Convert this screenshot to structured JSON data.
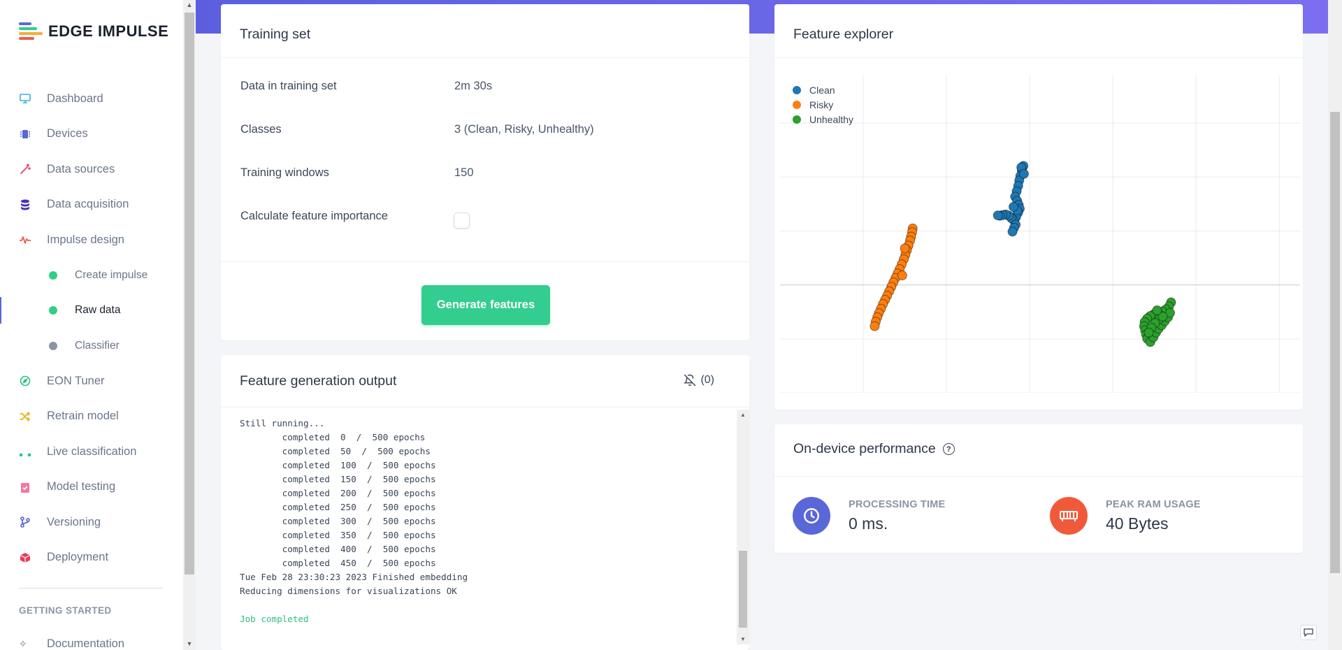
{
  "brand": {
    "name": "EDGE IMPULSE"
  },
  "sidebar": {
    "items": [
      {
        "label": "Dashboard",
        "icon": "monitor-icon",
        "color": "#38b2d8"
      },
      {
        "label": "Devices",
        "icon": "chip-icon",
        "color": "#5a67d8"
      },
      {
        "label": "Data sources",
        "icon": "wand-icon",
        "color": "#e53e6a"
      },
      {
        "label": "Data acquisition",
        "icon": "database-icon",
        "color": "#4c2fb0"
      },
      {
        "label": "Impulse design",
        "icon": "pulse-icon",
        "color": "#f05a4a"
      }
    ],
    "sub_items": [
      {
        "label": "Create impulse",
        "dot": "#2fcf86"
      },
      {
        "label": "Raw data",
        "dot": "#2fcf86"
      },
      {
        "label": "Classifier",
        "dot": "#8a94a6"
      }
    ],
    "items2": [
      {
        "label": "EON Tuner",
        "icon": "compass-icon",
        "color": "#2fbf7f"
      },
      {
        "label": "Retrain model",
        "icon": "shuffle-icon",
        "color": "#e8b61e"
      },
      {
        "label": "Live classification",
        "icon": "curve-icon",
        "color": "#2fbf9f"
      },
      {
        "label": "Model testing",
        "icon": "clipboard-check-icon",
        "color": "#f07aa0"
      },
      {
        "label": "Versioning",
        "icon": "branch-icon",
        "color": "#5a67d8"
      },
      {
        "label": "Deployment",
        "icon": "box-icon",
        "color": "#e53e5a"
      }
    ],
    "section_label": "GETTING STARTED",
    "documentation": "Documentation"
  },
  "training_set": {
    "title": "Training set",
    "rows": [
      {
        "label": "Data in training set",
        "value": "2m 30s"
      },
      {
        "label": "Classes",
        "value": "3 (Clean, Risky, Unhealthy)"
      },
      {
        "label": "Training windows",
        "value": "150"
      }
    ],
    "feature_importance_label": "Calculate feature importance",
    "feature_importance_checked": false,
    "generate_button": "Generate features"
  },
  "output": {
    "title": "Feature generation output",
    "notif_count": "(0)",
    "lines": [
      "Still running...",
      "        completed  0  /  500 epochs",
      "        completed  50  /  500 epochs",
      "        completed  100  /  500 epochs",
      "        completed  150  /  500 epochs",
      "        completed  200  /  500 epochs",
      "        completed  250  /  500 epochs",
      "        completed  300  /  500 epochs",
      "        completed  350  /  500 epochs",
      "        completed  400  /  500 epochs",
      "        completed  450  /  500 epochs",
      "Tue Feb 28 23:30:23 2023 Finished embedding",
      "Reducing dimensions for visualizations OK",
      "",
      "Job completed"
    ]
  },
  "explorer": {
    "title": "Feature explorer",
    "legend": [
      {
        "name": "Clean",
        "color": "#1f77b4"
      },
      {
        "name": "Risky",
        "color": "#ff7f0e"
      },
      {
        "name": "Unhealthy",
        "color": "#2ca02c"
      }
    ]
  },
  "chart_data": {
    "type": "scatter",
    "title": "",
    "xlabel": "",
    "ylabel": "",
    "xlim": [
      0,
      100
    ],
    "ylim": [
      0,
      100
    ],
    "grid": true,
    "legend_position": "top-left",
    "series": [
      {
        "name": "Clean",
        "color": "#1f77b4",
        "points": [
          [
            46.8,
            71.5
          ],
          [
            46.5,
            70.0
          ],
          [
            46.2,
            68.3
          ],
          [
            46.0,
            66.9
          ],
          [
            45.8,
            65.2
          ],
          [
            45.5,
            63.5
          ],
          [
            45.2,
            61.8
          ],
          [
            45.6,
            60.5
          ],
          [
            45.9,
            59.2
          ],
          [
            46.1,
            58.0
          ],
          [
            45.8,
            56.8
          ],
          [
            45.4,
            55.4
          ],
          [
            45.0,
            54.3
          ],
          [
            44.5,
            55.0
          ],
          [
            44.0,
            55.8
          ],
          [
            43.4,
            56.2
          ],
          [
            42.8,
            56.0
          ],
          [
            42.3,
            55.8
          ],
          [
            41.9,
            55.9
          ],
          [
            45.3,
            53.0
          ],
          [
            45.0,
            52.0
          ],
          [
            44.7,
            50.8
          ],
          [
            45.6,
            57.5
          ],
          [
            44.9,
            58.6
          ],
          [
            46.4,
            71.0
          ],
          [
            46.9,
            69.0
          ]
        ]
      },
      {
        "name": "Risky",
        "color": "#ff7f0e",
        "points": [
          [
            25.5,
            51.8
          ],
          [
            25.4,
            50.6
          ],
          [
            25.2,
            49.2
          ],
          [
            25.0,
            48.0
          ],
          [
            24.7,
            46.4
          ],
          [
            24.4,
            44.9
          ],
          [
            24.1,
            43.5
          ],
          [
            23.8,
            42.1
          ],
          [
            23.4,
            40.5
          ],
          [
            23.0,
            39.0
          ],
          [
            22.6,
            37.6
          ],
          [
            22.2,
            36.2
          ],
          [
            21.8,
            34.8
          ],
          [
            21.4,
            33.4
          ],
          [
            21.0,
            32.0
          ],
          [
            20.6,
            30.6
          ],
          [
            20.2,
            29.3
          ],
          [
            19.8,
            28.0
          ],
          [
            19.4,
            26.5
          ],
          [
            19.0,
            25.1
          ],
          [
            18.7,
            23.8
          ],
          [
            18.4,
            22.4
          ],
          [
            18.2,
            21.0
          ],
          [
            23.5,
            37.0
          ],
          [
            24.0,
            45.5
          ]
        ]
      },
      {
        "name": "Unhealthy",
        "color": "#2ca02c",
        "points": [
          [
            75.2,
            28.5
          ],
          [
            74.8,
            27.2
          ],
          [
            74.2,
            26.3
          ],
          [
            73.5,
            25.6
          ],
          [
            72.7,
            25.2
          ],
          [
            71.9,
            24.8
          ],
          [
            71.2,
            24.2
          ],
          [
            70.6,
            23.4
          ],
          [
            70.1,
            22.3
          ],
          [
            70.0,
            21.0
          ],
          [
            70.2,
            19.7
          ],
          [
            70.4,
            18.4
          ],
          [
            70.6,
            17.1
          ],
          [
            71.2,
            16.0
          ],
          [
            71.8,
            17.5
          ],
          [
            72.3,
            19.0
          ],
          [
            72.8,
            20.2
          ],
          [
            73.4,
            21.3
          ],
          [
            74.0,
            22.6
          ],
          [
            74.6,
            23.8
          ],
          [
            75.0,
            25.2
          ],
          [
            73.0,
            23.3
          ],
          [
            72.1,
            22.0
          ],
          [
            71.4,
            20.5
          ],
          [
            70.9,
            19.0
          ],
          [
            73.6,
            24.0
          ],
          [
            72.5,
            26.0
          ]
        ]
      }
    ]
  },
  "performance": {
    "title": "On-device performance",
    "processing_label": "PROCESSING TIME",
    "processing_value": "0 ms.",
    "ram_label": "PEAK RAM USAGE",
    "ram_value": "40 Bytes"
  }
}
